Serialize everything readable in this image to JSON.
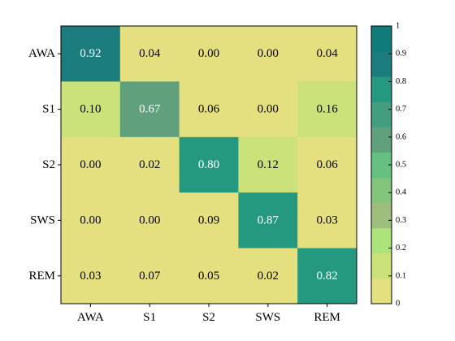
{
  "chart_data": {
    "type": "heatmap",
    "title": "",
    "xlabel": "",
    "ylabel": "",
    "x_categories": [
      "AWA",
      "S1",
      "S2",
      "SWS",
      "REM"
    ],
    "y_categories": [
      "AWA",
      "S1",
      "S2",
      "SWS",
      "REM"
    ],
    "values": [
      [
        0.92,
        0.04,
        0.0,
        0.0,
        0.04
      ],
      [
        0.1,
        0.67,
        0.06,
        0.0,
        0.16
      ],
      [
        0.0,
        0.02,
        0.8,
        0.12,
        0.06
      ],
      [
        0.0,
        0.0,
        0.09,
        0.87,
        0.03
      ],
      [
        0.03,
        0.07,
        0.05,
        0.02,
        0.82
      ]
    ],
    "value_range": [
      0,
      1
    ],
    "colorbar": {
      "ticks": [
        "0",
        "0.1",
        "0.2",
        "0.3",
        "0.4",
        "0.5",
        "0.6",
        "0.7",
        "0.8",
        "0.9",
        "1"
      ],
      "colors": [
        "#e4e07f",
        "#cbe17a",
        "#ace37b",
        "#9ebf7c",
        "#82c57b",
        "#66c07f",
        "#60a07c",
        "#439d7f",
        "#25997f",
        "#1a7c7c",
        "#0f7b7a"
      ]
    },
    "grid": false,
    "legend": "colorbar-right"
  }
}
